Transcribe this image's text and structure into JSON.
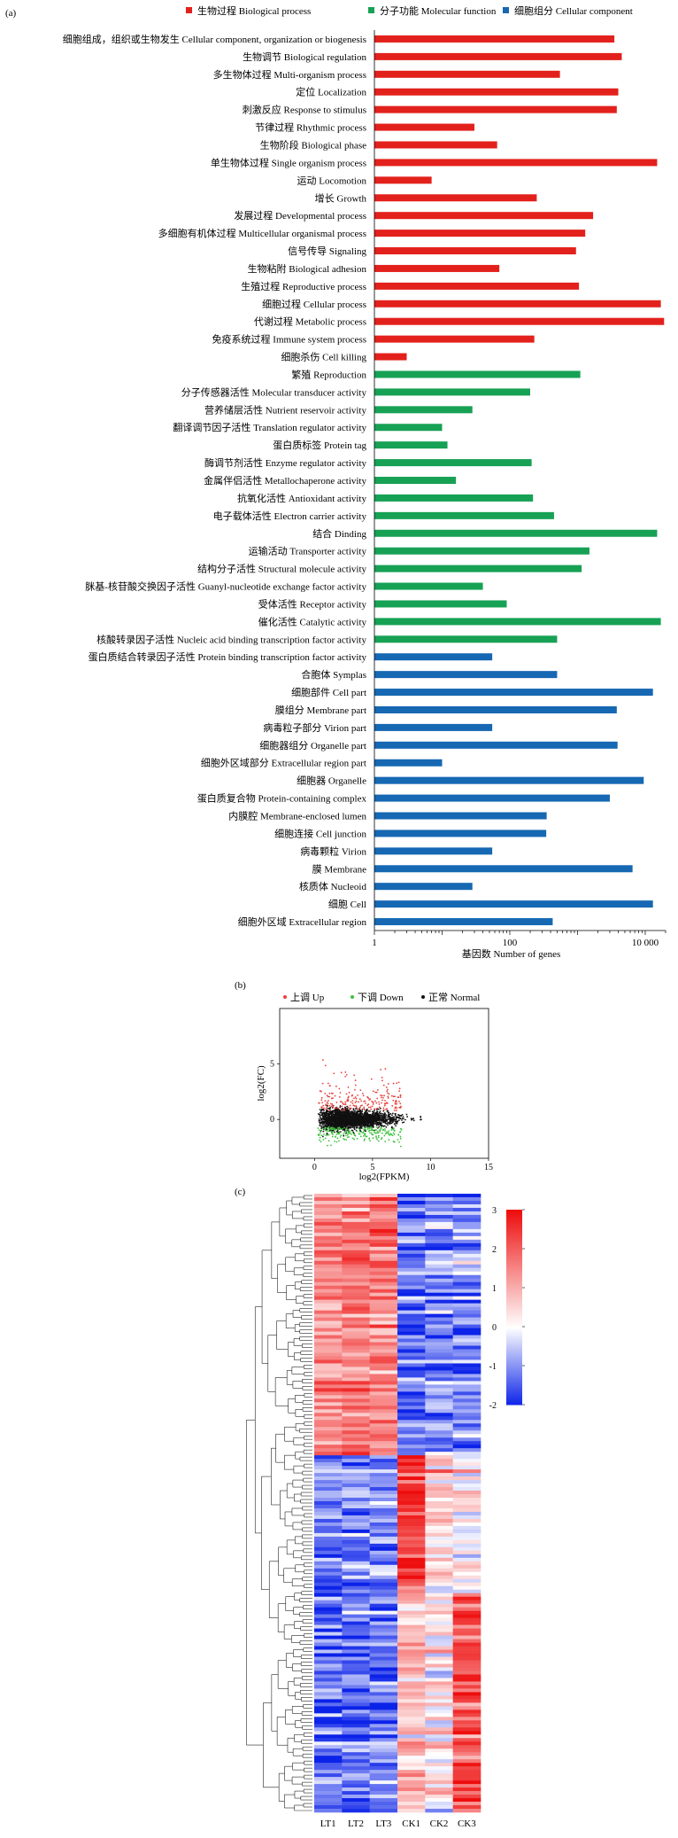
{
  "chart_data": [
    {
      "panel": "(a)",
      "type": "bar",
      "orientation": "horizontal",
      "xscale": "log",
      "xlabel": "基因数 Number of genes",
      "xticks": [
        "1",
        "100",
        "10 000"
      ],
      "xlim": [
        1,
        20000
      ],
      "legend_position": "top",
      "series": [
        {
          "name": "生物过程 Biological process",
          "color": "#e3211c"
        },
        {
          "name": "分子功能 Molecular function",
          "color": "#17a155"
        },
        {
          "name": "细胞组分 Cellular component",
          "color": "#1668b3"
        }
      ],
      "categories": [
        {
          "label": "细胞组成，组织或生物发生 Cellular component, organization or biogenesis",
          "value": 3500,
          "group": 0
        },
        {
          "label": "生物调节 Biological regulation",
          "value": 4500,
          "group": 0
        },
        {
          "label": "多生物体过程 Multi-organism process",
          "value": 550,
          "group": 0
        },
        {
          "label": "定位 Localization",
          "value": 4000,
          "group": 0
        },
        {
          "label": "刺激反应 Response to stimulus",
          "value": 3800,
          "group": 0
        },
        {
          "label": "节律过程 Rhythmic process",
          "value": 30,
          "group": 0
        },
        {
          "label": "生物阶段 Biological phase",
          "value": 65,
          "group": 0
        },
        {
          "label": "单生物体过程 Single organism process",
          "value": 15000,
          "group": 0
        },
        {
          "label": "运动 Locomotion",
          "value": 7,
          "group": 0
        },
        {
          "label": "增长 Growth",
          "value": 250,
          "group": 0
        },
        {
          "label": "发展过程 Developmental process",
          "value": 1700,
          "group": 0
        },
        {
          "label": "多细胞有机体过程 Multicellular organismal process",
          "value": 1300,
          "group": 0
        },
        {
          "label": "信号传导 Signaling",
          "value": 950,
          "group": 0
        },
        {
          "label": "生物粘附 Biological adhesion",
          "value": 70,
          "group": 0
        },
        {
          "label": "生殖过程 Reproductive process",
          "value": 1050,
          "group": 0
        },
        {
          "label": "细胞过程 Cellular process",
          "value": 17000,
          "group": 0
        },
        {
          "label": "代谢过程 Metabolic process",
          "value": 19000,
          "group": 0
        },
        {
          "label": "免疫系统过程 Immune system process",
          "value": 230,
          "group": 0
        },
        {
          "label": "细胞杀伤 Cell killing",
          "value": 3,
          "group": 0
        },
        {
          "label": "繁殖 Reproduction",
          "value": 1100,
          "group": 1
        },
        {
          "label": "分子传感器活性 Molecular transducer activity",
          "value": 200,
          "group": 1
        },
        {
          "label": "营养储层活性 Nutrient reservoir activity",
          "value": 28,
          "group": 1
        },
        {
          "label": "翻译调节因子活性 Translation regulator activity",
          "value": 10,
          "group": 1
        },
        {
          "label": "蛋白质标签 Protein tag",
          "value": 12,
          "group": 1
        },
        {
          "label": "酶调节剂活性 Enzyme regulator activity",
          "value": 210,
          "group": 1
        },
        {
          "label": "金属伴侣活性 Metallochaperone activity",
          "value": 16,
          "group": 1
        },
        {
          "label": "抗氧化活性 Antioxidant activity",
          "value": 220,
          "group": 1
        },
        {
          "label": "电子载体活性 Electron carrier activity",
          "value": 450,
          "group": 1
        },
        {
          "label": "结合 Dinding",
          "value": 15000,
          "group": 1
        },
        {
          "label": "运输活动 Transporter activity",
          "value": 1500,
          "group": 1
        },
        {
          "label": "结构分子活性 Structural molecule activity",
          "value": 1150,
          "group": 1
        },
        {
          "label": "脒基-核苷酸交换因子活性 Guanyl-nucleotide exchange factor activity",
          "value": 40,
          "group": 1
        },
        {
          "label": "受体活性 Receptor activity",
          "value": 90,
          "group": 1
        },
        {
          "label": "催化活性 Catalytic activity",
          "value": 17000,
          "group": 1
        },
        {
          "label": "核酸转录因子活性 Nucleic acid binding transcription factor activity",
          "value": 500,
          "group": 1
        },
        {
          "label": "蛋白质结合转录因子活性 Protein binding transcription factor activity",
          "value": 55,
          "group": 2
        },
        {
          "label": "合胞体 Symplas",
          "value": 500,
          "group": 2
        },
        {
          "label": "细胞部件 Cell part",
          "value": 13000,
          "group": 2
        },
        {
          "label": "膜组分 Membrane part",
          "value": 3800,
          "group": 2
        },
        {
          "label": "病毒粒子部分 Virion part",
          "value": 55,
          "group": 2
        },
        {
          "label": "细胞器组分 Organelle part",
          "value": 3900,
          "group": 2
        },
        {
          "label": "细胞外区域部分 Extracellular region part",
          "value": 10,
          "group": 2
        },
        {
          "label": "细胞器 Organelle",
          "value": 9500,
          "group": 2
        },
        {
          "label": "蛋白质复合物 Protein-containing complex",
          "value": 3000,
          "group": 2
        },
        {
          "label": "内膜腔 Membrane-enclosed lumen",
          "value": 350,
          "group": 2
        },
        {
          "label": "细胞连接 Cell junction",
          "value": 345,
          "group": 2
        },
        {
          "label": "病毒颗粒 Virion",
          "value": 55,
          "group": 2
        },
        {
          "label": "膜 Membrane",
          "value": 6500,
          "group": 2
        },
        {
          "label": "核质体 Nucleoid",
          "value": 28,
          "group": 2
        },
        {
          "label": "细胞 Cell",
          "value": 13000,
          "group": 2
        },
        {
          "label": "细胞外区域 Extracellular region",
          "value": 430,
          "group": 2
        }
      ]
    },
    {
      "panel": "(b)",
      "type": "scatter",
      "xlabel": "log2(FPKM)",
      "ylabel": "log2(FC)",
      "xlim": [
        -3,
        15
      ],
      "ylim": [
        -3.5,
        10
      ],
      "xticks": [
        "0",
        "5",
        "10",
        "15"
      ],
      "yticks": [
        "0",
        "5"
      ],
      "legend_position": "top",
      "series": [
        {
          "name": "上调 Up",
          "color": "#e8413c"
        },
        {
          "name": "下调 Down",
          "color": "#3cc13c"
        },
        {
          "name": "正常 Normal",
          "color": "#111111"
        }
      ]
    },
    {
      "panel": "(c)",
      "type": "heatmap",
      "columns": [
        "LT1",
        "LT2",
        "LT3",
        "CK1",
        "CK2",
        "CK3"
      ],
      "colorbar": {
        "min": -2,
        "max": 3,
        "ticks": [
          "3",
          "2",
          "1",
          "0",
          "-1",
          "-2"
        ],
        "colors": [
          "#0b22e8",
          "#ffffff",
          "#ee0e0e"
        ]
      },
      "clusters": [
        {
          "name": "",
          "row_fraction": 0.42,
          "mean_values": [
            1.3,
            1.6,
            1.5,
            -1.4,
            -1.0,
            -1.1
          ]
        },
        {
          "name": "",
          "row_fraction": 0.22,
          "mean_values": [
            -1.1,
            -1.2,
            -1.1,
            2.4,
            0.5,
            0.2
          ]
        },
        {
          "name": "",
          "row_fraction": 0.36,
          "mean_values": [
            -1.2,
            -1.3,
            -1.2,
            0.8,
            0.3,
            2.2
          ]
        }
      ]
    }
  ]
}
